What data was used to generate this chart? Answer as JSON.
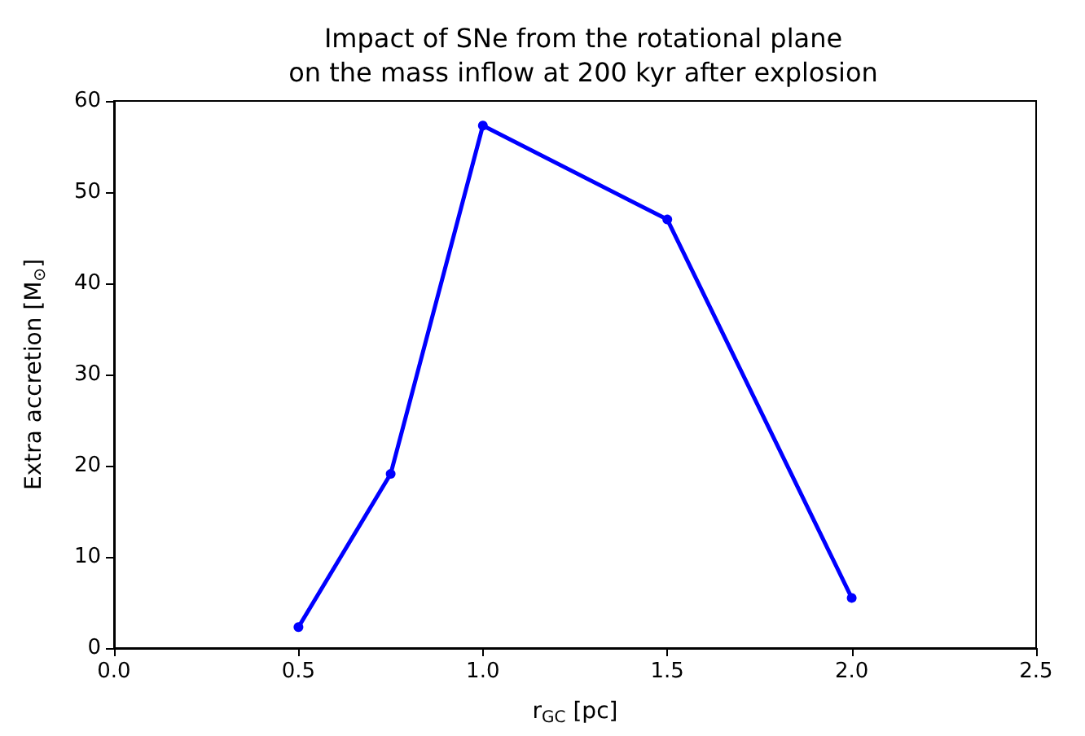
{
  "chart_data": {
    "type": "line",
    "title": "Impact of SNe from the rotational plane\non the mass inflow at 200 kyr after explosion",
    "xlabel": "r$_{GC}$ [pc]",
    "ylabel": "Extra accretion [M$_{⊙}$]",
    "x": [
      0.5,
      0.75,
      1.0,
      1.5,
      2.0
    ],
    "series": [
      {
        "color": "#0000ff",
        "values": [
          2.3,
          19.1,
          57.3,
          47.0,
          5.5
        ]
      }
    ],
    "xlim": [
      0,
      2.5
    ],
    "ylim": [
      0,
      60
    ],
    "xticks": [
      {
        "value": 0,
        "label": "0.0"
      },
      {
        "value": 0.5,
        "label": "0.5"
      },
      {
        "value": 1,
        "label": "1.0"
      },
      {
        "value": 1.5,
        "label": "1.5"
      },
      {
        "value": 2,
        "label": "2.0"
      },
      {
        "value": 2.5,
        "label": "2.5"
      }
    ],
    "yticks": [
      0,
      10,
      20,
      30,
      40,
      50,
      60
    ],
    "grid": false,
    "marker": "circle",
    "line_style": "solid"
  }
}
